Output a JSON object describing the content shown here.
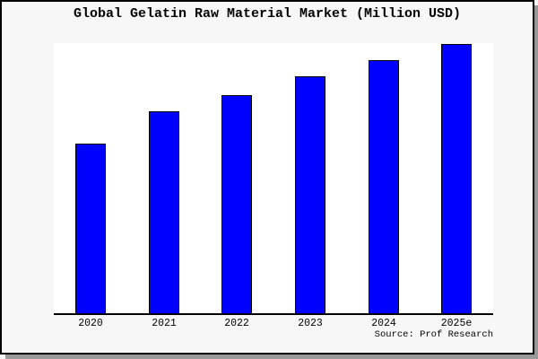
{
  "title": "Global Gelatin Raw Material Market (Million USD)",
  "source_caption": "Source: Prof Research",
  "colors": {
    "figure_background": "#f7f7f7",
    "plot_background": "#ffffff",
    "bar_fill": "#0000ff",
    "bar_border": "#000000",
    "axis_line": "#000000",
    "frame_border": "#000000",
    "frame_shadow": "#999999",
    "text": "#000000"
  },
  "chart_data": {
    "type": "bar",
    "title": "Global Gelatin Raw Material Market (Million USD)",
    "categories": [
      "2020",
      "2021",
      "2022",
      "2023",
      "2024",
      "2025e"
    ],
    "values": [
      0.63,
      0.75,
      0.81,
      0.88,
      0.94,
      1.0
    ],
    "values_note": "y-axis has no ticks or labels; values are bar heights relative to the tallest bar (2025e = 1.0)",
    "xlabel": "",
    "ylabel": "",
    "ylim": [
      0,
      1.0
    ],
    "grid": false,
    "legend": false,
    "bar_color": "#0000ff"
  }
}
